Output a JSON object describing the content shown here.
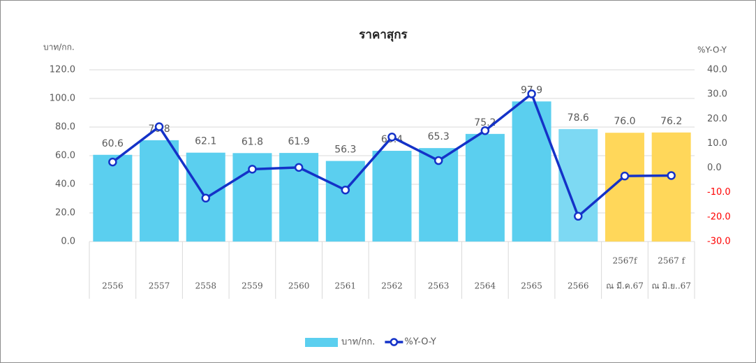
{
  "chart_data": {
    "type": "bar_line",
    "title": "ราคาสุกร",
    "y_label": "บาท/กก.",
    "y2_label": "%Y-O-Y",
    "categories": [
      [
        "2556"
      ],
      [
        "2557"
      ],
      [
        "2558"
      ],
      [
        "2559"
      ],
      [
        "2560"
      ],
      [
        "2561"
      ],
      [
        "2562"
      ],
      [
        "2563"
      ],
      [
        "2564"
      ],
      [
        "2565"
      ],
      [
        "2566"
      ],
      [
        "2567f",
        "ณ มี.ค.67"
      ],
      [
        "2567 f",
        "ณ มิ.ย..67"
      ]
    ],
    "series": [
      {
        "name": "บาท/กก.",
        "type": "bar",
        "color": "#5bcfef",
        "colors": [
          "#5bcfef",
          "#5bcfef",
          "#5bcfef",
          "#5bcfef",
          "#5bcfef",
          "#5bcfef",
          "#5bcfef",
          "#5bcfef",
          "#5bcfef",
          "#5bcfef",
          "#7dd9f3",
          "#ffd75a",
          "#ffd75a"
        ],
        "values": [
          60.6,
          70.8,
          62.1,
          61.8,
          61.9,
          56.3,
          63.4,
          65.3,
          75.2,
          97.9,
          78.6,
          76.0,
          76.2
        ],
        "value_labels": [
          "60.6",
          "70.8",
          "62.1",
          "61.8",
          "61.9",
          "56.3",
          "63.4",
          "65.3",
          "75.2",
          "97.9",
          "78.6",
          "76.0",
          "76.2"
        ]
      },
      {
        "name": "%Y-O-Y",
        "type": "line",
        "axis": "y2",
        "color": "#1432c8",
        "values": [
          2.4,
          16.8,
          -12.3,
          -0.5,
          0.2,
          -9.0,
          12.6,
          3.0,
          15.2,
          30.2,
          -19.7,
          -3.3,
          -3.1
        ]
      }
    ],
    "ylim": [
      0,
      120
    ],
    "yticks": [
      {
        "value": 0,
        "label": "0.0"
      },
      {
        "value": 20,
        "label": "20.0"
      },
      {
        "value": 40,
        "label": "40.0"
      },
      {
        "value": 60,
        "label": "60.0"
      },
      {
        "value": 80,
        "label": "80.0"
      },
      {
        "value": 100,
        "label": "100.0"
      },
      {
        "value": 120,
        "label": "120.0"
      }
    ],
    "y2lim": [
      -30,
      40
    ],
    "y2ticks": [
      {
        "value": -30,
        "label": "-30.0"
      },
      {
        "value": -20,
        "label": "-20.0"
      },
      {
        "value": -10,
        "label": "-10.0"
      },
      {
        "value": 0,
        "label": "0.0"
      },
      {
        "value": 10,
        "label": "10.0"
      },
      {
        "value": 20,
        "label": "20.0"
      },
      {
        "value": 30,
        "label": "30.0"
      },
      {
        "value": 40,
        "label": "40.0"
      }
    ],
    "y2_negative_color": "#ff0000",
    "grid": true,
    "legend": "bottom"
  }
}
